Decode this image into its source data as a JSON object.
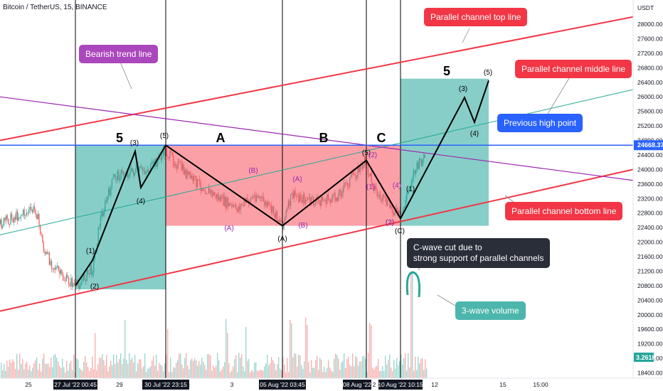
{
  "header": {
    "title": "Bitcoin / TetherUS, 15, BINANCE"
  },
  "price_axis": {
    "currency": "USDT",
    "ticks": [
      "28000.00",
      "27600.00",
      "27200.00",
      "26800.00",
      "26400.00",
      "26000.00",
      "25600.00",
      "25200.00",
      "24800.00",
      "24400.00",
      "24000.00",
      "23600.00",
      "23200.00",
      "22800.00",
      "22400.00",
      "22000.00",
      "21600.00",
      "21200.00",
      "20800.00",
      "20400.00",
      "20000.00",
      "19600.00",
      "19200.00",
      "18800.00",
      "18400.00"
    ],
    "current_price": "24668.37",
    "volume_tag": "3.261K"
  },
  "time_axis": {
    "plain_ticks": [
      "25",
      "29",
      "3",
      "12",
      "15",
      "15:00"
    ],
    "boxed_ticks": [
      "27 Jul '22  00:45",
      "30 Jul '22  23:15",
      "05 Aug '22  03:45",
      "08 Aug '22",
      "10 Aug '22  10:15"
    ],
    "extra_ticks": [
      "2",
      "ug"
    ]
  },
  "wave_labels": {
    "big": [
      "5",
      "A",
      "B",
      "C",
      "5"
    ],
    "small_black": [
      "(1)",
      "(2)",
      "(3)",
      "(4)",
      "(5)",
      "(A)",
      "(5)",
      "(2)",
      "(1)",
      "(C)",
      "(3)",
      "(4)",
      "(5)"
    ],
    "small_purple": [
      "(B)",
      "(A)",
      "(A)",
      "(B)",
      "(1)",
      "(2)",
      "(4)",
      "(2)"
    ]
  },
  "callouts": {
    "channel_top": "Parallel channel top line",
    "bearish": "Bearish trend line",
    "channel_middle": "Parallel channel middle line",
    "previous_high": "Previous high point",
    "channel_bottom": "Parallel channel bottom line",
    "c_wave": "C-wave cut due to\nstrong support of parallel channels",
    "volume": "3-wave volume"
  },
  "colors": {
    "channel_lines": "#f23645",
    "channel_mid": "#22ab94",
    "bearish_line": "#9c27b0",
    "previous_high_line": "#2962ff",
    "green_box": "#26a69a",
    "red_box": "#f7525f",
    "candle_up": "#26a69a",
    "candle_down": "#ef5350",
    "callout_red": "#f23645",
    "callout_purple": "#ab47bc",
    "callout_blue": "#2962ff",
    "callout_teal": "#4db6ac",
    "callout_dark": "#2a2e39"
  },
  "chart_data": {
    "type": "candlestick",
    "title": "Bitcoin / TetherUS, 15, BINANCE",
    "ylim": [
      18400,
      28400
    ],
    "x_range": [
      "25 Jul '22",
      "15 Aug '22"
    ],
    "current_price": 24668.37,
    "price_path": [
      {
        "x": "24 Jul '22",
        "y": 22500
      },
      {
        "x": "25 Jul '22",
        "y": 22700
      },
      {
        "x": "26 Jul '22",
        "y": 22900
      },
      {
        "x": "26 Jul '22",
        "y": 21700
      },
      {
        "x": "27 Jul '22",
        "y": 21000
      },
      {
        "x": "27 Jul '22 00:45",
        "y": 20800
      },
      {
        "x": "28 Jul '22",
        "y": 21300
      },
      {
        "x": "28 Jul '22",
        "y": 22600
      },
      {
        "x": "29 Jul '22",
        "y": 23800
      },
      {
        "x": "29 Jul '22",
        "y": 23900
      },
      {
        "x": "30 Jul '22",
        "y": 24000
      },
      {
        "x": "30 Jul '22 23:15",
        "y": 24500
      },
      {
        "x": "31 Jul '22",
        "y": 23800
      },
      {
        "x": "01 Aug '22",
        "y": 23300
      },
      {
        "x": "02 Aug '22",
        "y": 22900
      },
      {
        "x": "03 Aug '22",
        "y": 23300
      },
      {
        "x": "04 Aug '22",
        "y": 22900
      },
      {
        "x": "05 Aug '22 03:45",
        "y": 22500
      },
      {
        "x": "05 Aug '22",
        "y": 23300
      },
      {
        "x": "06 Aug '22",
        "y": 23100
      },
      {
        "x": "07 Aug '22",
        "y": 23200
      },
      {
        "x": "08 Aug '22",
        "y": 24200
      },
      {
        "x": "09 Aug '22",
        "y": 23300
      },
      {
        "x": "10 Aug '22 10:15",
        "y": 22700
      },
      {
        "x": "10 Aug '22",
        "y": 23900
      },
      {
        "x": "11 Aug '22",
        "y": 24400
      }
    ],
    "wave_projection": [
      {
        "x": "10 Aug '22 10:15",
        "y": 22600
      },
      {
        "x": "13 Aug '22",
        "y": 26000
      },
      {
        "x": "13 Aug '22",
        "y": 25200
      },
      {
        "x": "14 Aug '22",
        "y": 26400
      }
    ],
    "horizontal_lines": [
      {
        "name": "Previous high point",
        "y": 24668.37
      }
    ],
    "boxes": [
      {
        "type": "impulse 5",
        "x": [
          "27 Jul '22 00:45",
          "30 Jul '22 23:15"
        ],
        "y": [
          20700,
          24668
        ]
      },
      {
        "type": "correction ABC",
        "x": [
          "30 Jul '22 23:15",
          "10 Aug '22 10:15"
        ],
        "y": [
          22450,
          24668
        ]
      },
      {
        "type": "projected 5",
        "x": [
          "10 Aug '22 10:15",
          "14 Aug '22"
        ],
        "y": [
          22450,
          26500
        ]
      }
    ],
    "grid": false
  }
}
